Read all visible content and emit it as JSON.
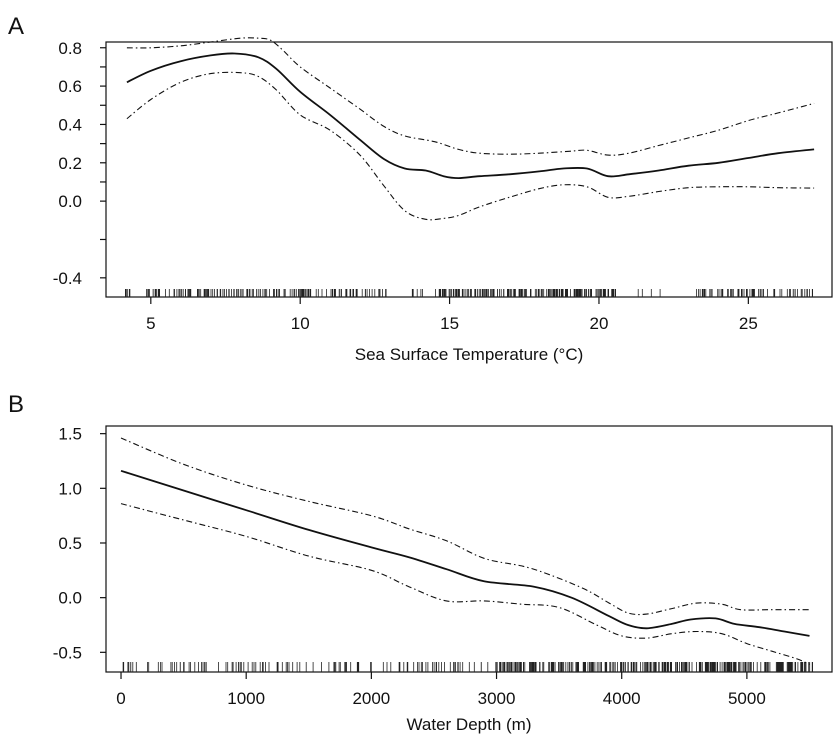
{
  "chart_data": [
    {
      "panel_label": "A",
      "type": "line",
      "title": "",
      "xlabel": "Sea Surface Temperature (°C)",
      "ylabel": "",
      "xlim": [
        3.5,
        27.8
      ],
      "ylim": [
        -0.5,
        0.83
      ],
      "x_ticks": [
        5,
        10,
        15,
        20,
        25
      ],
      "x_tick_labels": [
        "5",
        "10",
        "15",
        "20",
        "25"
      ],
      "y_ticks": [
        -0.4,
        0.0,
        0.2,
        0.4,
        0.6,
        0.8
      ],
      "y_tick_labels": [
        "-0.4",
        "0.0",
        "0.2",
        "0.4",
        "0.6",
        "0.8"
      ],
      "y_minor_ticks": [
        -0.2,
        0.1,
        0.3,
        0.5,
        0.7
      ],
      "series": [
        {
          "role": "estimate",
          "style": "solid",
          "x": [
            4.2,
            5,
            6,
            7,
            7.8,
            8.6,
            9.2,
            10,
            11,
            12,
            12.8,
            13.5,
            14.2,
            14.8,
            15.3,
            16,
            17,
            18,
            18.8,
            19.6,
            20.3,
            21,
            22,
            23,
            24,
            25,
            26,
            27.2
          ],
          "y": [
            0.62,
            0.68,
            0.73,
            0.76,
            0.77,
            0.75,
            0.69,
            0.57,
            0.45,
            0.32,
            0.22,
            0.17,
            0.16,
            0.13,
            0.12,
            0.13,
            0.14,
            0.155,
            0.17,
            0.17,
            0.13,
            0.14,
            0.16,
            0.185,
            0.2,
            0.225,
            0.25,
            0.27
          ]
        },
        {
          "role": "upper",
          "style": "dashdot",
          "x": [
            4.2,
            5,
            6,
            7,
            8,
            8.6,
            9,
            9.4,
            10,
            11,
            12,
            12.8,
            13.5,
            14.5,
            15.3,
            16,
            17,
            18,
            19,
            19.6,
            20.3,
            21,
            22,
            23,
            24,
            25,
            26,
            27.2
          ],
          "y": [
            0.8,
            0.8,
            0.81,
            0.83,
            0.85,
            0.85,
            0.84,
            0.79,
            0.7,
            0.59,
            0.48,
            0.39,
            0.34,
            0.31,
            0.27,
            0.25,
            0.245,
            0.25,
            0.26,
            0.265,
            0.24,
            0.25,
            0.29,
            0.33,
            0.37,
            0.42,
            0.46,
            0.51
          ]
        },
        {
          "role": "lower",
          "style": "dashdot",
          "x": [
            4.2,
            5,
            6,
            7,
            8,
            8.6,
            9.2,
            10,
            11,
            12,
            12.8,
            13.5,
            14.2,
            14.8,
            15.3,
            16,
            17,
            18,
            18.8,
            19.6,
            20.3,
            21,
            22,
            23,
            24,
            25,
            26,
            27.2
          ],
          "y": [
            0.43,
            0.53,
            0.62,
            0.665,
            0.67,
            0.65,
            0.58,
            0.45,
            0.37,
            0.24,
            0.08,
            -0.05,
            -0.095,
            -0.09,
            -0.075,
            -0.03,
            0.02,
            0.065,
            0.085,
            0.075,
            0.02,
            0.025,
            0.05,
            0.07,
            0.075,
            0.075,
            0.07,
            0.068
          ]
        }
      ],
      "rug_density": "dense at 4-13, 14-20, 23-27; sparse near 13-14 and 21-23"
    },
    {
      "panel_label": "B",
      "type": "line",
      "title": "",
      "xlabel": "Water Depth (m)",
      "ylabel": "",
      "xlim": [
        -120,
        5680
      ],
      "ylim": [
        -0.68,
        1.57
      ],
      "x_ticks": [
        0,
        1000,
        2000,
        3000,
        4000,
        5000
      ],
      "x_tick_labels": [
        "0",
        "1000",
        "2000",
        "3000",
        "4000",
        "5000"
      ],
      "y_ticks": [
        -0.5,
        0.0,
        0.5,
        1.0,
        1.5
      ],
      "y_tick_labels": [
        "-0.5",
        "0.0",
        "0.5",
        "1.0",
        "1.5"
      ],
      "series": [
        {
          "role": "estimate",
          "style": "solid",
          "x": [
            0,
            500,
            1000,
            1500,
            2000,
            2300,
            2600,
            2900,
            3300,
            3600,
            3900,
            4050,
            4200,
            4400,
            4550,
            4750,
            4900,
            5100,
            5300,
            5500
          ],
          "y": [
            1.16,
            0.98,
            0.8,
            0.62,
            0.46,
            0.37,
            0.26,
            0.15,
            0.1,
            0.0,
            -0.17,
            -0.25,
            -0.28,
            -0.24,
            -0.2,
            -0.19,
            -0.24,
            -0.27,
            -0.31,
            -0.35
          ]
        },
        {
          "role": "upper",
          "style": "dashdot",
          "x": [
            0,
            500,
            1000,
            1500,
            2000,
            2300,
            2600,
            2900,
            3200,
            3400,
            3700,
            3900,
            4050,
            4200,
            4400,
            4600,
            4800,
            4950,
            5200,
            5500
          ],
          "y": [
            1.46,
            1.22,
            1.03,
            0.88,
            0.75,
            0.63,
            0.52,
            0.36,
            0.29,
            0.22,
            0.08,
            -0.05,
            -0.14,
            -0.15,
            -0.1,
            -0.05,
            -0.06,
            -0.11,
            -0.11,
            -0.11
          ]
        },
        {
          "role": "lower",
          "style": "dashdot",
          "x": [
            0,
            500,
            1000,
            1500,
            2000,
            2300,
            2600,
            2900,
            3200,
            3500,
            3800,
            4000,
            4200,
            4400,
            4600,
            4800,
            5000,
            5200,
            5400,
            5500
          ],
          "y": [
            0.86,
            0.71,
            0.56,
            0.38,
            0.25,
            0.1,
            -0.03,
            -0.03,
            -0.06,
            -0.09,
            -0.25,
            -0.35,
            -0.37,
            -0.33,
            -0.31,
            -0.33,
            -0.42,
            -0.49,
            -0.56,
            -0.61
          ]
        }
      ],
      "rug_density": "moderate 0-3000, very dense 3000-5500"
    }
  ]
}
